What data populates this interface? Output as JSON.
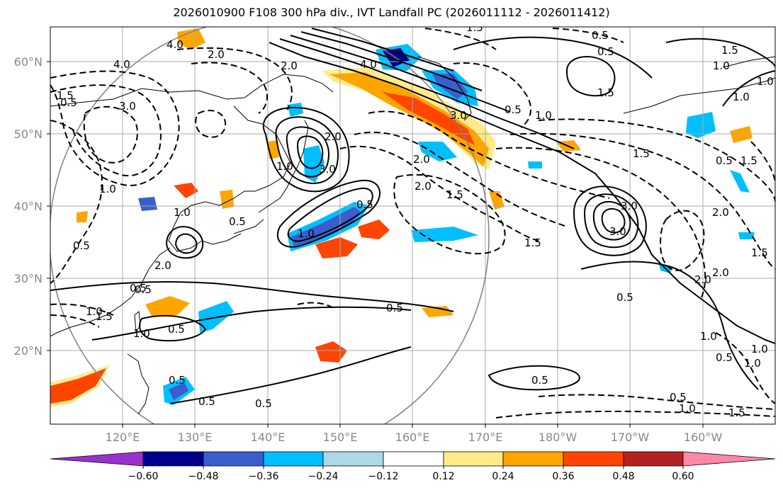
{
  "title": "2026010900 F108 300 hPa div., IVT Landfall PC (2026011112 - 2026011412)",
  "lat_ticks": [
    "60°N",
    "50°N",
    "40°N",
    "30°N",
    "20°N"
  ],
  "lon_ticks": [
    "120°E",
    "130°E",
    "140°E",
    "150°E",
    "160°E",
    "170°E",
    "180°W",
    "170°W",
    "160°W"
  ],
  "colorbar": {
    "labels": [
      "−0.60",
      "−0.48",
      "−0.36",
      "−0.24",
      "−0.12",
      "0.12",
      "0.24",
      "0.36",
      "0.48",
      "0.60"
    ],
    "colors": [
      "#9932cc",
      "#00008b",
      "#3a5fcd",
      "#00bfff",
      "#add8e6",
      "#ffffff",
      "#ffeb8a",
      "#ffa500",
      "#ff4500",
      "#b22222",
      "#ff88aa"
    ]
  },
  "contour_labels": [
    "1.5",
    "0.5",
    "4.0",
    "2.0",
    "2.0",
    "1.0",
    "1.5",
    "1.0",
    "4.0",
    "3.0",
    "1.5",
    "3.0",
    "1.0",
    "0.5",
    "0.5",
    "1.0",
    "2.0",
    "3.0",
    "2.0",
    "1.5",
    "1.5",
    "0.5",
    "2.0",
    "1.5",
    "1.0",
    "0.5",
    "1.0",
    "1.5",
    "2.0",
    "0.5",
    "3.0",
    "0.5",
    "1.5",
    "0.5",
    "0.5",
    "1.5",
    "2.0",
    "1.0",
    "0.5",
    "1.0",
    "0.5",
    "0.5",
    "0.5",
    "1.0",
    "0.5",
    "0.5",
    "1.0",
    "0.5",
    "0.5",
    "1.0",
    "0.5",
    "1.5",
    "1.0",
    "4.0",
    "3.0",
    "2.0",
    "0.5",
    "1.5",
    "1.0",
    "2.0",
    "1.0"
  ],
  "features": {
    "div_colors": {
      "neg1": "#add8e6",
      "neg2": "#00bfff",
      "neg3": "#3a5fcd",
      "neg4": "#00008b",
      "pos1": "#ffeb8a",
      "pos2": "#ffa500",
      "pos3": "#ff4500"
    }
  }
}
